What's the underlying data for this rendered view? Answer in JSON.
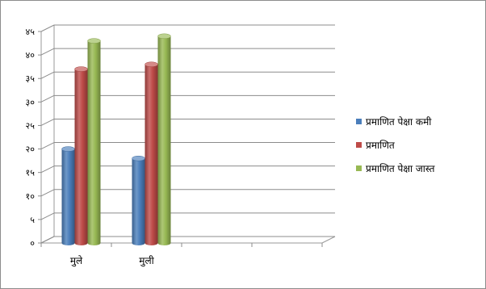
{
  "chart_data": {
    "type": "bar",
    "categories": [
      "मुले",
      "मुली",
      "",
      ""
    ],
    "series": [
      {
        "name": "प्रमाणित  पेक्षा कमी",
        "values": [
          20,
          18,
          null,
          null
        ],
        "color": "#4a7ebb"
      },
      {
        "name": "प्रमाणित",
        "values": [
          37,
          38,
          null,
          null
        ],
        "color": "#be4b48"
      },
      {
        "name": "प्रमाणित  पेक्षा जास्त",
        "values": [
          43,
          44,
          null,
          null
        ],
        "color": "#98b954"
      }
    ],
    "ylim": [
      0,
      45
    ],
    "yticks": [
      "०",
      "५",
      "१०",
      "१५",
      "२०",
      "२५",
      "३०",
      "३५",
      "४०",
      "४५"
    ],
    "grid": true,
    "legend": "right",
    "title": "",
    "xlabel": "",
    "ylabel": ""
  }
}
